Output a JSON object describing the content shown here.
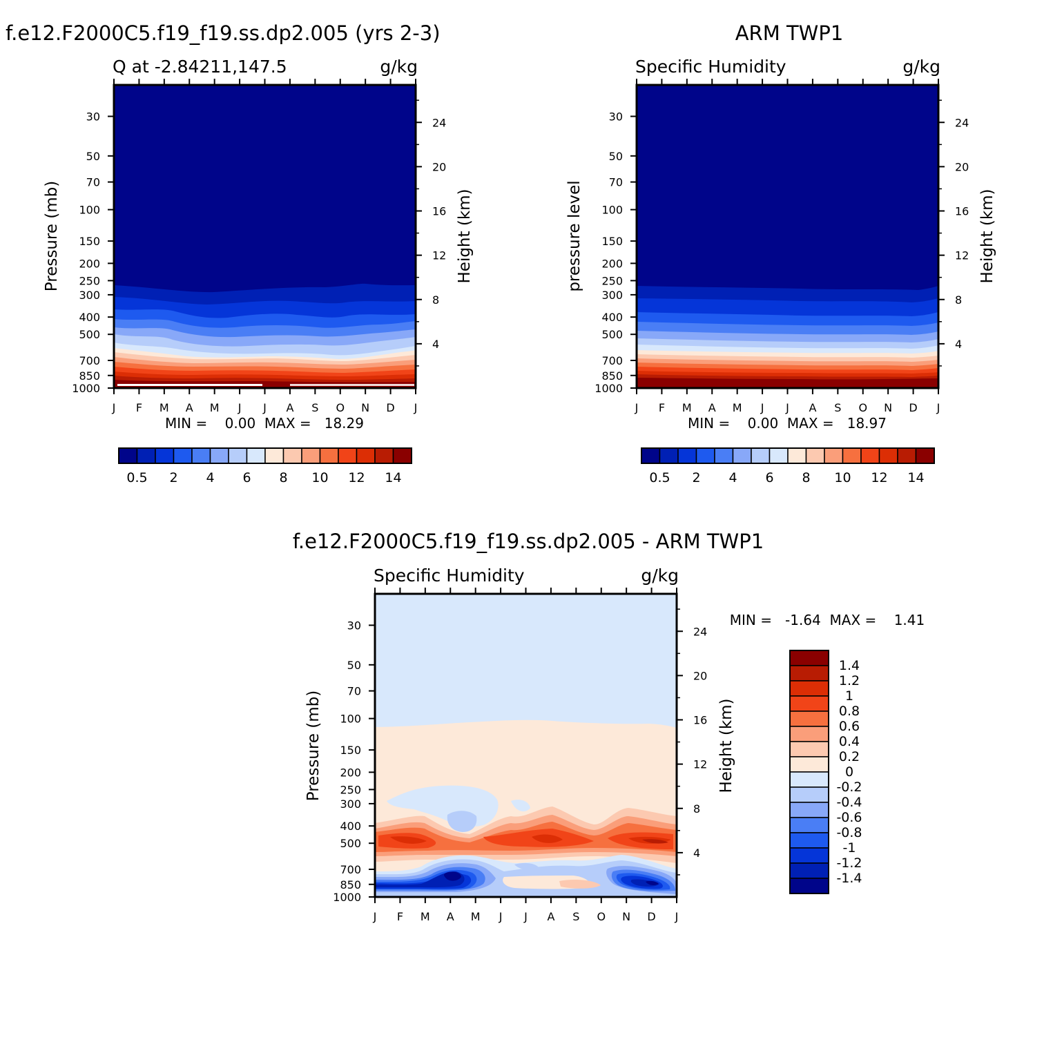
{
  "panels": {
    "top_left": {
      "title": "f.e12.F2000C5.f19_f19.ss.dp2.005 (yrs 2-3)",
      "left_label": "Q at -2.84211,147.5",
      "units": "g/kg",
      "ylabel": "Pressure (mb)",
      "ylabel2": "Height (km)",
      "stats": "MIN =    0.00  MAX =   18.29"
    },
    "top_right": {
      "title": "ARM TWP1",
      "left_label": "Specific Humidity",
      "units": "g/kg",
      "ylabel": "pressure level",
      "ylabel2": "Height (km)",
      "stats": "MIN =    0.00  MAX =   18.97"
    },
    "bottom": {
      "title": "f.e12.F2000C5.f19_f19.ss.dp2.005 - ARM TWP1",
      "left_label": "Specific Humidity",
      "units": "g/kg",
      "ylabel": "Pressure (mb)",
      "ylabel2": "Height (km)",
      "stats": "MIN =   -1.64  MAX =    1.41"
    }
  },
  "chart_data": [
    {
      "type": "heatmap",
      "title": "f.e12.F2000C5.f19_f19.ss.dp2.005 (yrs 2-3)",
      "subtitle": "Q at -2.84211,147.5",
      "units": "g/kg",
      "x_ticks": [
        "J",
        "F",
        "M",
        "A",
        "M",
        "J",
        "J",
        "A",
        "S",
        "O",
        "N",
        "D",
        "J"
      ],
      "y_ticks": [
        30,
        50,
        70,
        100,
        150,
        200,
        250,
        300,
        400,
        500,
        700,
        850,
        1000
      ],
      "y2_ticks": [
        4,
        8,
        12,
        16,
        20,
        24
      ],
      "ylabel": "Pressure (mb)",
      "ylabel2": "Height (km)",
      "ylim": [
        20,
        1000
      ],
      "yscale": "log",
      "min": 0.0,
      "max": 18.29,
      "colorbar_labels": [
        "0.5",
        "2",
        "4",
        "6",
        "8",
        "10",
        "12",
        "14"
      ],
      "colorbar_colors": [
        "#00058a",
        "#0020b4",
        "#0535d8",
        "#1e5aef",
        "#4a7ef5",
        "#88a8f8",
        "#b6cdfa",
        "#d8e8fc",
        "#fde9d9",
        "#fcc9b0",
        "#fa9e7a",
        "#f6703f",
        "#f14418",
        "#dc2e05",
        "#b81c03",
        "#8a0000"
      ]
    },
    {
      "type": "heatmap",
      "title": "ARM TWP1",
      "subtitle": "Specific Humidity",
      "units": "g/kg",
      "x_ticks": [
        "J",
        "F",
        "M",
        "A",
        "M",
        "J",
        "J",
        "A",
        "S",
        "O",
        "N",
        "D",
        "J"
      ],
      "y_ticks": [
        30,
        50,
        70,
        100,
        150,
        200,
        250,
        300,
        400,
        500,
        700,
        850,
        1000
      ],
      "y2_ticks": [
        4,
        8,
        12,
        16,
        20,
        24
      ],
      "ylabel": "pressure level",
      "ylabel2": "Height (km)",
      "ylim": [
        20,
        1000
      ],
      "yscale": "log",
      "min": 0.0,
      "max": 18.97,
      "colorbar_labels": [
        "0.5",
        "2",
        "4",
        "6",
        "8",
        "10",
        "12",
        "14"
      ],
      "colorbar_colors": [
        "#00058a",
        "#0020b4",
        "#0535d8",
        "#1e5aef",
        "#4a7ef5",
        "#88a8f8",
        "#b6cdfa",
        "#d8e8fc",
        "#fde9d9",
        "#fcc9b0",
        "#fa9e7a",
        "#f6703f",
        "#f14418",
        "#dc2e05",
        "#b81c03",
        "#8a0000"
      ]
    },
    {
      "type": "heatmap",
      "title": "f.e12.F2000C5.f19_f19.ss.dp2.005 - ARM TWP1",
      "subtitle": "Specific Humidity",
      "units": "g/kg",
      "x_ticks": [
        "J",
        "F",
        "M",
        "A",
        "M",
        "J",
        "J",
        "A",
        "S",
        "O",
        "N",
        "D",
        "J"
      ],
      "y_ticks": [
        30,
        50,
        70,
        100,
        150,
        200,
        250,
        300,
        400,
        500,
        700,
        850,
        1000
      ],
      "y2_ticks": [
        4,
        8,
        12,
        16,
        20,
        24
      ],
      "ylabel": "Pressure (mb)",
      "ylabel2": "Height (km)",
      "ylim": [
        20,
        1000
      ],
      "yscale": "log",
      "min": -1.64,
      "max": 1.41,
      "colorbar_labels": [
        "1.4",
        "1.2",
        "1",
        "0.8",
        "0.6",
        "0.4",
        "0.2",
        "0",
        "-0.2",
        "-0.4",
        "-0.6",
        "-0.8",
        "-1",
        "-1.2",
        "-1.4"
      ],
      "colorbar_colors": [
        "#8a0000",
        "#b81c03",
        "#dc2e05",
        "#f14418",
        "#f6703f",
        "#fa9e7a",
        "#fcc9b0",
        "#fde9d9",
        "#d8e8fc",
        "#b6cdfa",
        "#88a8f8",
        "#4a7ef5",
        "#1e5aef",
        "#0535d8",
        "#0020b4",
        "#00058a"
      ]
    }
  ]
}
